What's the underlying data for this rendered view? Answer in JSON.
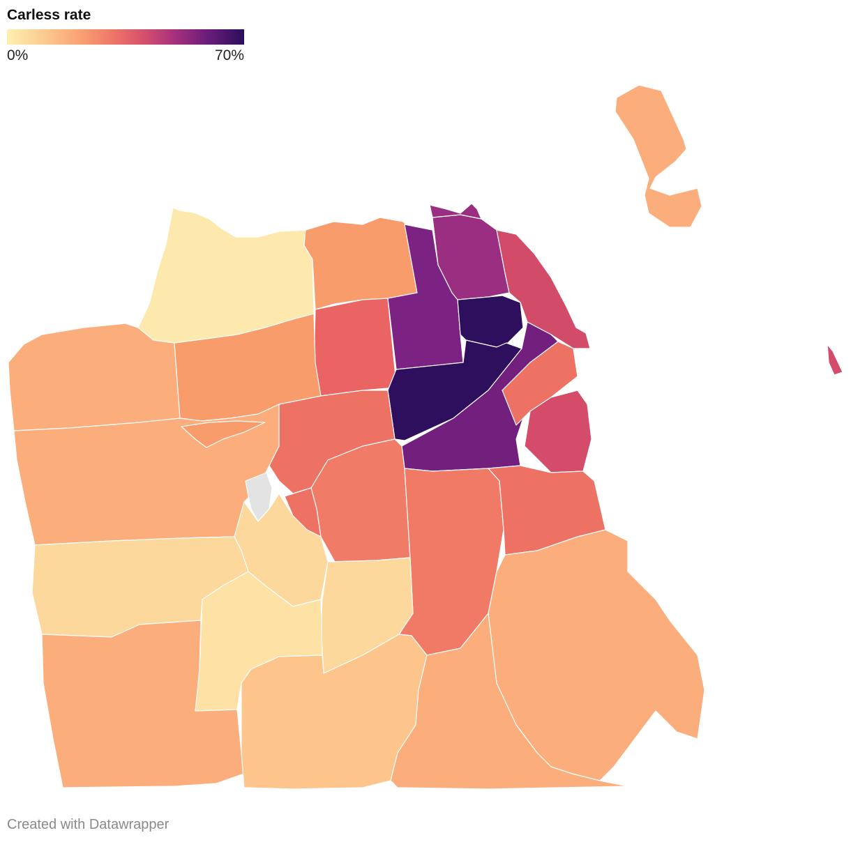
{
  "legend": {
    "title": "Carless rate",
    "min_label": "0%",
    "max_label": "70%",
    "gradient_colors": [
      "#fdf0b2",
      "#fcc48a",
      "#f99e71",
      "#ec7267",
      "#d44f6c",
      "#a8327c",
      "#6d1d7c",
      "#2c0f5c"
    ]
  },
  "colors": {
    "no_data": "#e3e3e3",
    "border": "#ffffff"
  },
  "footer": {
    "credit": "Created with Datawrapper"
  }
}
